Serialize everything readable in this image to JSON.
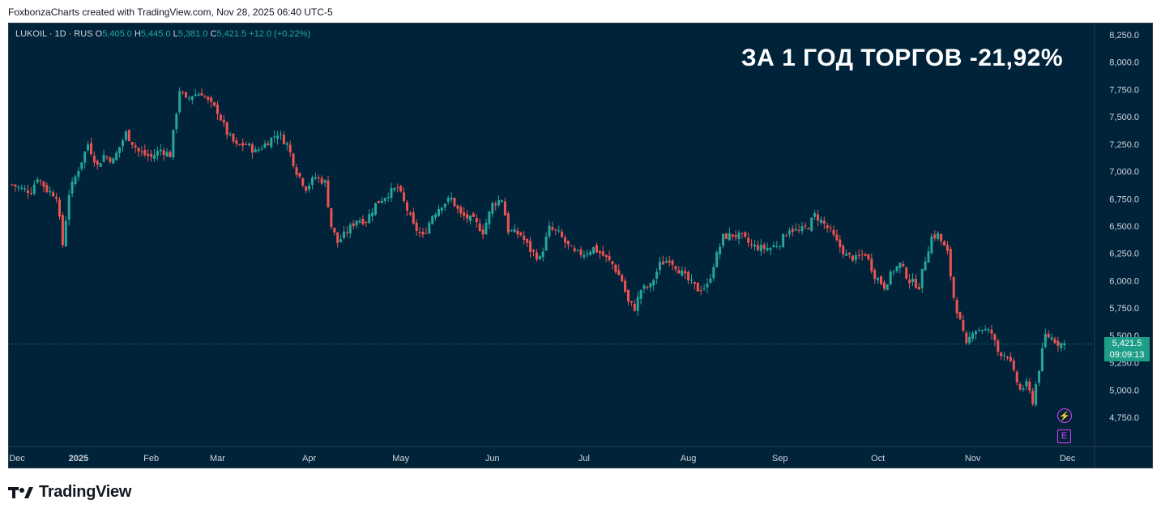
{
  "header": {
    "caption": "FoxbonzaCharts created with TradingView.com, Nov 28, 2025 06:40 UTC-5"
  },
  "symbol": {
    "name": "LUKOIL · 1D · RUS",
    "o_label": "O",
    "o": "5,405.0",
    "h_label": "H",
    "h": "5,445.0",
    "l_label": "L",
    "l": "5,381.0",
    "c_label": "C",
    "c": "5,421.5",
    "change": "+12.0 (+0.22%)"
  },
  "annotation": "ЗА 1 ГОД ТОРГОВ -21,92%",
  "price_tag": {
    "price": "5,421.5",
    "countdown": "09:09:13"
  },
  "events": {
    "lightning_icon": "lightning-icon",
    "earnings_label": "E"
  },
  "footer": {
    "brand": "TradingView"
  },
  "colors": {
    "up": "#26a69a",
    "down": "#ef5350",
    "background": "#00233a",
    "accent": "#1e9e88",
    "event": "#e040fb"
  },
  "chart_data": {
    "type": "candlestick",
    "interval": "1D",
    "ylim": [
      4650,
      8300
    ],
    "y_ticks": [
      "8,250.0",
      "8,000.0",
      "7,750.0",
      "7,500.0",
      "7,250.0",
      "7,000.0",
      "6,750.0",
      "6,500.0",
      "6,250.0",
      "6,000.0",
      "5,750.0",
      "5,500.0",
      "5,250.0",
      "5,000.0",
      "4,750.0"
    ],
    "y_tick_values": [
      8250,
      8000,
      7750,
      7500,
      7250,
      7000,
      6750,
      6500,
      6250,
      6000,
      5750,
      5500,
      5250,
      5000,
      4750
    ],
    "x_labels": [
      "Dec",
      "2025",
      "Feb",
      "Mar",
      "Apr",
      "May",
      "Jun",
      "Jul",
      "Aug",
      "Sep",
      "Oct",
      "Nov",
      "Dec"
    ],
    "x_label_index": [
      0,
      21,
      44,
      65,
      94,
      123,
      152,
      181,
      214,
      243,
      274,
      304,
      334
    ],
    "last_price": 5421.5,
    "close_waypoints": [
      [
        0,
        6880
      ],
      [
        3,
        6840
      ],
      [
        6,
        6820
      ],
      [
        8,
        6950
      ],
      [
        11,
        6830
      ],
      [
        14,
        6780
      ],
      [
        16,
        6330
      ],
      [
        18,
        6800
      ],
      [
        20,
        6950
      ],
      [
        24,
        7250
      ],
      [
        27,
        7050
      ],
      [
        29,
        7150
      ],
      [
        32,
        7100
      ],
      [
        36,
        7350
      ],
      [
        40,
        7180
      ],
      [
        44,
        7130
      ],
      [
        47,
        7200
      ],
      [
        50,
        7150
      ],
      [
        53,
        7750
      ],
      [
        55,
        7650
      ],
      [
        57,
        7700
      ],
      [
        60,
        7720
      ],
      [
        62,
        7640
      ],
      [
        65,
        7550
      ],
      [
        68,
        7350
      ],
      [
        71,
        7230
      ],
      [
        74,
        7250
      ],
      [
        77,
        7180
      ],
      [
        80,
        7250
      ],
      [
        84,
        7350
      ],
      [
        87,
        7250
      ],
      [
        90,
        7000
      ],
      [
        93,
        6850
      ],
      [
        96,
        6950
      ],
      [
        99,
        6900
      ],
      [
        101,
        6500
      ],
      [
        103,
        6350
      ],
      [
        106,
        6450
      ],
      [
        109,
        6560
      ],
      [
        112,
        6550
      ],
      [
        115,
        6700
      ],
      [
        119,
        6800
      ],
      [
        122,
        6850
      ],
      [
        125,
        6650
      ],
      [
        127,
        6500
      ],
      [
        130,
        6400
      ],
      [
        133,
        6600
      ],
      [
        136,
        6700
      ],
      [
        139,
        6750
      ],
      [
        142,
        6600
      ],
      [
        146,
        6550
      ],
      [
        149,
        6450
      ],
      [
        152,
        6700
      ],
      [
        155,
        6750
      ],
      [
        157,
        6460
      ],
      [
        161,
        6420
      ],
      [
        164,
        6280
      ],
      [
        167,
        6200
      ],
      [
        170,
        6480
      ],
      [
        173,
        6430
      ],
      [
        175,
        6350
      ],
      [
        178,
        6250
      ],
      [
        181,
        6250
      ],
      [
        184,
        6300
      ],
      [
        187,
        6230
      ],
      [
        190,
        6150
      ],
      [
        193,
        6000
      ],
      [
        195,
        5800
      ],
      [
        197,
        5750
      ],
      [
        199,
        5920
      ],
      [
        202,
        5950
      ],
      [
        205,
        6150
      ],
      [
        208,
        6200
      ],
      [
        211,
        6100
      ],
      [
        214,
        6000
      ],
      [
        217,
        5920
      ],
      [
        220,
        5950
      ],
      [
        222,
        6150
      ],
      [
        225,
        6400
      ],
      [
        228,
        6420
      ],
      [
        231,
        6400
      ],
      [
        234,
        6320
      ],
      [
        237,
        6300
      ],
      [
        240,
        6300
      ],
      [
        243,
        6350
      ],
      [
        246,
        6480
      ],
      [
        249,
        6450
      ],
      [
        252,
        6500
      ],
      [
        254,
        6600
      ],
      [
        256,
        6550
      ],
      [
        259,
        6450
      ],
      [
        261,
        6350
      ],
      [
        264,
        6230
      ],
      [
        267,
        6200
      ],
      [
        270,
        6250
      ],
      [
        273,
        6050
      ],
      [
        276,
        5950
      ],
      [
        279,
        6100
      ],
      [
        281,
        6150
      ],
      [
        284,
        6000
      ],
      [
        287,
        5950
      ],
      [
        289,
        6200
      ],
      [
        291,
        6400
      ],
      [
        293,
        6420
      ],
      [
        296,
        6250
      ],
      [
        298,
        5850
      ],
      [
        300,
        5620
      ],
      [
        302,
        5400
      ],
      [
        304,
        5550
      ],
      [
        307,
        5560
      ],
      [
        310,
        5520
      ],
      [
        312,
        5350
      ],
      [
        315,
        5320
      ],
      [
        317,
        5150
      ],
      [
        319,
        5000
      ],
      [
        321,
        5050
      ],
      [
        323,
        4900
      ],
      [
        325,
        5200
      ],
      [
        327,
        5500
      ],
      [
        329,
        5480
      ],
      [
        331,
        5430
      ],
      [
        333,
        5421.5
      ]
    ]
  }
}
